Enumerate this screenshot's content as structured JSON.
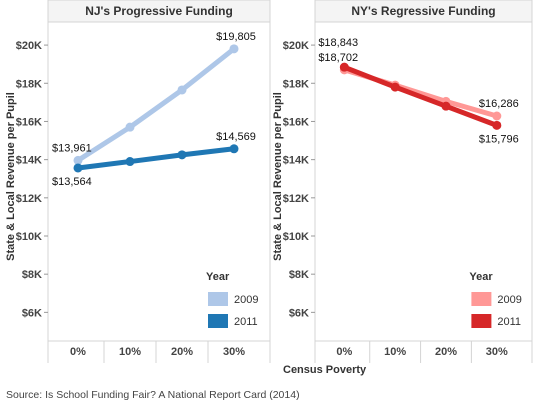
{
  "source_note": "Source: Is School Funding Fair? A National Report Card (2014)",
  "chart_data": [
    {
      "type": "line",
      "title": "NJ's Progressive Funding",
      "ylabel": "State & Local Revenue per Pupil",
      "xlabel": "",
      "categories": [
        "0%",
        "10%",
        "20%",
        "30%"
      ],
      "ylim": [
        4500,
        21000
      ],
      "yticks": [
        6000,
        8000,
        10000,
        12000,
        14000,
        16000,
        18000,
        20000
      ],
      "ytick_labels": [
        "$6K",
        "$8K",
        "$10K",
        "$12K",
        "$14K",
        "$16K",
        "$18K",
        "$20K"
      ],
      "grid": false,
      "legend_title": "Year",
      "legend_position": "bottom-right",
      "series": [
        {
          "name": "2009",
          "color": "#aec7e8",
          "values": [
            13961,
            15700,
            17650,
            19805
          ],
          "labels": [
            {
              "index": 0,
              "text": "$13,961",
              "pos": "above"
            },
            {
              "index": 3,
              "text": "$19,805",
              "pos": "above"
            }
          ]
        },
        {
          "name": "2011",
          "color": "#1f77b4",
          "values": [
            13564,
            13900,
            14250,
            14569
          ],
          "labels": [
            {
              "index": 0,
              "text": "$13,564",
              "pos": "below"
            },
            {
              "index": 3,
              "text": "$14,569",
              "pos": "above"
            }
          ]
        }
      ]
    },
    {
      "type": "line",
      "title": "NY's Regressive Funding",
      "ylabel": "State & Local Revenue per Pupil",
      "xlabel": "Census Poverty",
      "categories": [
        "0%",
        "10%",
        "20%",
        "30%"
      ],
      "ylim": [
        4500,
        21000
      ],
      "yticks": [
        6000,
        8000,
        10000,
        12000,
        14000,
        16000,
        18000,
        20000
      ],
      "ytick_labels": [
        "$6K",
        "$8K",
        "$10K",
        "$12K",
        "$14K",
        "$16K",
        "$18K",
        "$20K"
      ],
      "grid": false,
      "legend_title": "Year",
      "legend_position": "bottom-right",
      "series": [
        {
          "name": "2009",
          "color": "#ff9896",
          "values": [
            18702,
            17900,
            17050,
            16286
          ],
          "labels": [
            {
              "index": 0,
              "text": "$18,702",
              "pos": "above"
            },
            {
              "index": 3,
              "text": "$16,286",
              "pos": "above"
            }
          ]
        },
        {
          "name": "2011",
          "color": "#d62728",
          "values": [
            18843,
            17800,
            16800,
            15796
          ],
          "labels": [
            {
              "index": 0,
              "text": "$18,843",
              "pos": "above2"
            },
            {
              "index": 3,
              "text": "$15,796",
              "pos": "below"
            }
          ]
        }
      ]
    }
  ]
}
